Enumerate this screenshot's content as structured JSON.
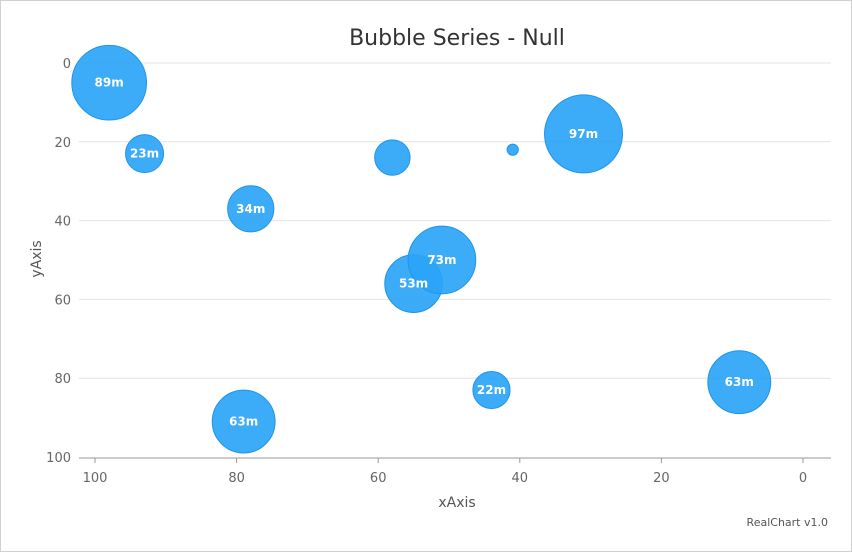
{
  "chart_data": {
    "type": "scatter",
    "subtype": "bubble",
    "title": "Bubble Series - Null",
    "xlabel": "xAxis",
    "ylabel": "yAxis",
    "xlim": [
      100,
      0
    ],
    "ylim": [
      0,
      100
    ],
    "x_reversed": true,
    "y_reversed": true,
    "x_ticks": [
      "100",
      "80",
      "60",
      "40",
      "20",
      "0"
    ],
    "y_ticks": [
      "0",
      "20",
      "40",
      "60",
      "80",
      "100"
    ],
    "grid": true,
    "color": "#2ba4f7",
    "credit": "RealChart v1.0",
    "points": [
      {
        "x": 98,
        "y": 5,
        "z": 89,
        "label": "89m"
      },
      {
        "x": 93,
        "y": 23,
        "z": 23,
        "label": "23m"
      },
      {
        "x": 78,
        "y": 37,
        "z": 34,
        "label": "34m"
      },
      {
        "x": 79,
        "y": 91,
        "z": 63,
        "label": "63m"
      },
      {
        "x": 58,
        "y": 24,
        "z": 20,
        "label": ""
      },
      {
        "x": 55,
        "y": 56,
        "z": 53,
        "label": "53m"
      },
      {
        "x": 51,
        "y": 50,
        "z": 73,
        "label": "73m"
      },
      {
        "x": 44,
        "y": 83,
        "z": 22,
        "label": "22m"
      },
      {
        "x": 41,
        "y": 22,
        "z": 2,
        "label": ""
      },
      {
        "x": 31,
        "y": 18,
        "z": 97,
        "label": "97m"
      },
      {
        "x": 9,
        "y": 81,
        "z": 63,
        "label": "63m"
      }
    ]
  }
}
